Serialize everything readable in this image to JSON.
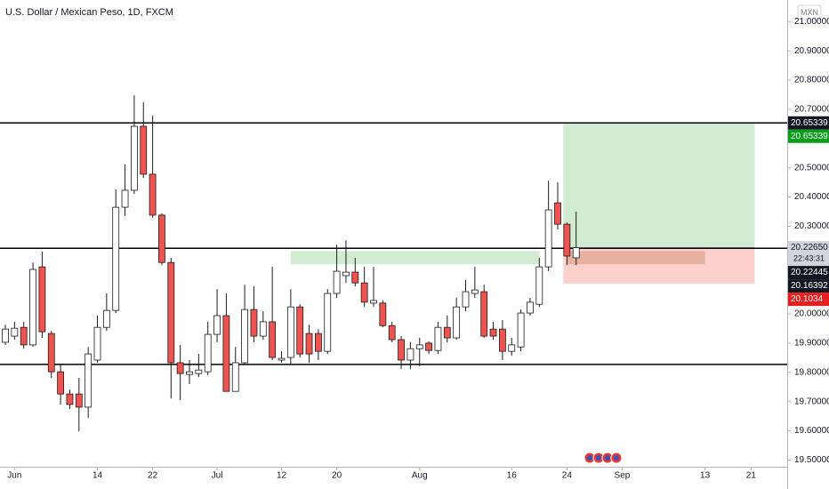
{
  "chart_data": {
    "type": "candlestick",
    "title": "U.S. Dollar / Mexican Peso, 1D, FXCM",
    "currency": "MXN",
    "categories": [
      null,
      "Jun",
      null,
      null,
      null,
      null,
      null,
      null,
      null,
      null,
      "14",
      null,
      null,
      null,
      null,
      null,
      "22",
      null,
      null,
      null,
      null,
      null,
      null,
      "Jul",
      null,
      null,
      null,
      null,
      null,
      null,
      "12",
      null,
      null,
      null,
      null,
      null,
      "20",
      null,
      null,
      null,
      null,
      null,
      null,
      null,
      null,
      "Aug",
      null,
      null,
      null,
      null,
      null,
      null,
      null,
      null,
      null,
      "16",
      null,
      null,
      null,
      null,
      null,
      "24",
      null,
      null,
      null,
      null,
      null,
      "Sep",
      null,
      null,
      null,
      null,
      null,
      null,
      null,
      null,
      "13",
      null,
      null,
      null,
      null,
      "21",
      null,
      null
    ],
    "open": [
      19.903,
      19.924,
      19.954,
      19.894,
      20.161,
      19.933,
      19.802,
      19.726,
      19.726,
      19.681,
      19.842,
      19.954,
      20.012,
      20.365,
      20.423,
      20.642,
      20.478,
      20.338,
      20.176,
      19.833,
      19.793,
      19.796,
      19.802,
      19.93,
      19.994,
      19.735,
      19.833,
      20.015,
      19.924,
      19.973,
      19.842,
      19.851,
      20.024,
      19.933,
      19.933,
      19.872,
      20.07,
      20.131,
      20.143,
      20.106,
      20.037,
      20.037,
      19.96,
      19.912,
      19.842,
      19.881,
      19.9,
      19.875,
      19.954,
      19.918,
      20.024,
      20.07,
      20.076,
      19.948,
      19.948,
      19.872,
      19.887,
      20.003,
      20.033,
      20.161,
      20.38,
      20.307,
      20.192,
      null,
      null,
      null,
      null,
      null,
      null,
      null,
      null,
      null,
      null,
      null,
      null,
      null,
      null,
      null,
      null,
      null,
      null,
      null,
      null,
      null
    ],
    "high": [
      19.963,
      19.973,
      19.973,
      20.176,
      20.213,
      19.942,
      19.827,
      19.741,
      19.781,
      19.887,
      19.994,
      20.07,
      20.426,
      20.511,
      20.748,
      20.724,
      20.678,
      20.344,
      20.192,
      19.894,
      19.842,
      19.863,
      19.973,
      20.085,
      20.07,
      19.887,
      20.1,
      20.094,
      20.009,
      20.161,
      19.872,
      20.085,
      20.033,
      19.963,
      19.948,
      20.085,
      20.237,
      20.252,
      20.192,
      20.161,
      20.161,
      20.046,
      19.973,
      19.924,
      19.903,
      19.918,
      19.906,
      19.973,
      19.994,
      20.055,
      20.116,
      20.161,
      20.1,
      19.973,
      19.979,
      19.918,
      20.015,
      20.055,
      20.192,
      20.456,
      20.45,
      20.313,
      20.35,
      null,
      null,
      null,
      null,
      null,
      null,
      null,
      null,
      null,
      null,
      null,
      null,
      null,
      null,
      null,
      null,
      null,
      null,
      null,
      null,
      null
    ],
    "low": [
      19.894,
      19.912,
      19.881,
      19.887,
      19.918,
      19.781,
      19.69,
      19.675,
      19.598,
      19.644,
      19.833,
      19.942,
      20.003,
      20.335,
      20.411,
      20.465,
      20.329,
      20.167,
      19.711,
      19.705,
      19.76,
      19.784,
      19.79,
      19.903,
      19.735,
      19.735,
      19.827,
      19.903,
      19.912,
      19.842,
      19.833,
      19.827,
      19.851,
      19.833,
      19.842,
      19.863,
      20.055,
      20.106,
      20.094,
      20.024,
      20.024,
      19.954,
      19.903,
      19.811,
      19.811,
      19.821,
      19.863,
      19.863,
      19.903,
      19.912,
      20.009,
      20.055,
      19.918,
      19.912,
      19.842,
      19.857,
      19.872,
      19.994,
      20.024,
      20.146,
      20.289,
      20.167,
      20.167,
      null,
      null,
      null,
      null,
      null,
      null,
      null,
      null,
      null,
      null,
      null,
      null,
      null,
      null,
      null,
      null,
      null,
      null,
      null,
      null,
      null
    ],
    "close": [
      19.948,
      19.951,
      19.894,
      20.152,
      19.939,
      19.802,
      19.726,
      19.69,
      19.681,
      19.863,
      19.954,
      20.012,
      20.365,
      20.423,
      20.642,
      20.478,
      20.338,
      20.176,
      19.833,
      19.796,
      19.802,
      19.808,
      19.93,
      19.994,
      19.735,
      19.833,
      20.015,
      19.924,
      19.973,
      19.851,
      19.848,
      20.024,
      19.863,
      19.863,
      19.872,
      20.07,
      20.146,
      20.143,
      20.106,
      20.04,
      20.046,
      19.96,
      19.912,
      19.842,
      19.881,
      19.894,
      19.875,
      19.954,
      19.918,
      20.024,
      20.076,
      20.082,
      19.924,
      19.924,
      19.872,
      19.894,
      20.003,
      20.04,
      20.161,
      20.356,
      20.307,
      20.198,
      20.2265,
      null,
      null,
      null,
      null,
      null,
      null,
      null,
      null,
      null,
      null,
      null,
      null,
      null,
      null,
      null,
      null,
      null,
      null,
      null,
      null,
      null
    ],
    "up_color": "#ffffff",
    "down_color": "#ef5350",
    "border_color": "#1c1c1c",
    "ylim": [
      19.477,
      21.074
    ],
    "yticks": [
      {
        "value": 19.5,
        "label": "19.50000"
      },
      {
        "value": 19.6,
        "label": "19.60000"
      },
      {
        "value": 19.7,
        "label": "19.70000"
      },
      {
        "value": 19.8,
        "label": "19.80000"
      },
      {
        "value": 19.9,
        "label": "19.90000"
      },
      {
        "value": 20.0,
        "label": "20.00000"
      },
      {
        "value": 20.3,
        "label": "20.30000"
      },
      {
        "value": 20.4,
        "label": "20.40000"
      },
      {
        "value": 20.5,
        "label": "20.50000"
      },
      {
        "value": 20.6,
        "label": "20.60000"
      },
      {
        "value": 20.7,
        "label": "20.70000"
      },
      {
        "value": 20.8,
        "label": "20.80000"
      },
      {
        "value": 20.9,
        "label": "20.90000"
      },
      {
        "value": 21.0,
        "label": "21.00000"
      }
    ],
    "levels": [
      20.65339,
      20.22445,
      19.82709
    ],
    "level_color": "#000000",
    "zones": [
      {
        "low": 20.17,
        "high": 20.215,
        "from": 31,
        "to": 58,
        "color": "rgba(76,175,80,0.25)"
      },
      {
        "low": 20.17,
        "high": 20.215,
        "from": 61,
        "to": 76,
        "color": "rgba(160,120,60,0.3)"
      }
    ],
    "position": {
      "entry": 20.2265,
      "target": 20.65339,
      "stop": 20.1034,
      "from": 61,
      "to": 81,
      "profit_color": "rgba(76,175,80,0.25)",
      "loss_color": "rgba(244,67,54,0.25)"
    },
    "price_labels": [
      {
        "value": 20.65339,
        "color": "#131722"
      },
      {
        "value": 20.65339,
        "color": "#089e1a"
      },
      {
        "value": 20.2265,
        "label": "20.22650",
        "countdown": "22:43:31",
        "color": "#d1d4dc"
      },
      {
        "value": 20.22445,
        "color": "#131722"
      },
      {
        "value": 20.16392,
        "color": "#131722"
      },
      {
        "value": 20.1034,
        "color": "#e91e1e"
      }
    ]
  }
}
